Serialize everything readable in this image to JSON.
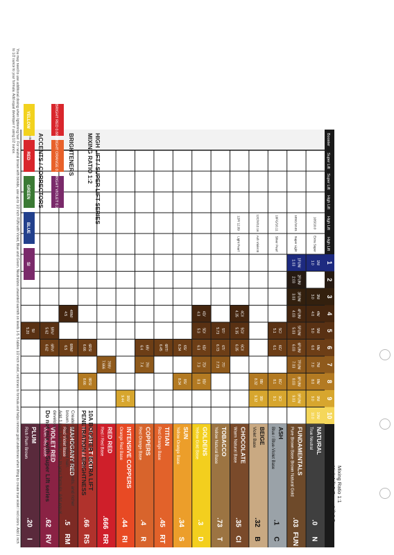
{
  "header": {
    "mixing_ratio_a": "Mixing Ratio 1:1",
    "mixing_ratio_b": "High Lift & Super Lift 1:2"
  },
  "levels": [
    "10",
    "9",
    "8",
    "7",
    "6",
    "5",
    "4",
    "3",
    "2",
    "1"
  ],
  "level_colors": [
    "#f5d75a",
    "#d7a62e",
    "#b37a22",
    "#8f5a1c",
    "#6d3e16",
    "#593113",
    "#45260f",
    "#33200e",
    "#261a12",
    "#1d2a80"
  ],
  "series": [
    {
      "code": "N",
      "tone": ".0",
      "name": "NATURAL",
      "base": "True Neutral",
      "color": "#3f3f3f",
      "text": "#ffffff",
      "cells": {
        "10": "10N/ 10.0",
        "9": "9N/ 9.0",
        "8": "8N/ 8.0",
        "7": "7N/ 7.0",
        "6": "6N/ 6.0",
        "5": "5N/ 5.0",
        "4": "4N/ 4.0",
        "3": "3N/ 3.0",
        "1": "1N/ 1.0"
      }
    },
    {
      "code": "FUN",
      "tone": ".03",
      "name": "FUNDAMENTALS",
      "base": "Pure Brown Base Brown Natural Gold",
      "color": "#6e4a2a",
      "text": "#ffffff",
      "cells": {
        "9": "9FUN/ 9.03",
        "8": "8FUN/ 8.03",
        "7": "7FUN/ 7.03",
        "6": "6FUN/ 6.03",
        "5": "5FUN/ 5.03",
        "4": "4FUN/ 4.03",
        "3": "3FUN/ 3.03",
        "2": "2FUN/ 2.03",
        "1": "1FUN/ 1.03"
      }
    },
    {
      "code": "C",
      "tone": ".1",
      "name": "ASH",
      "base": "Blue / Blue-Violet Base",
      "color": "#9aa2a8",
      "text": "#111111",
      "cells": {
        "9": "9C/ 9.1",
        "8": "8C/ 8.1",
        "6": "6C/ 6.1",
        "5": "5C/ 5.1"
      }
    },
    {
      "code": "B",
      "tone": ".32",
      "name": "BEIGE",
      "base": "Violet Base",
      "color": "#c9a982",
      "text": "#111111",
      "cells": {
        "9": "9B/ 9.32",
        "8": "8B/ 8.32"
      }
    },
    {
      "code": "CI",
      "tone": ".35",
      "name": "CHOCOLATE",
      "base": "Warm Natural Base",
      "color": "#7a4a2a",
      "text": "#ffffff",
      "cells": {
        "6": "6CI/ 6.35",
        "5": "5CI/ 5.35",
        "4": "4CI/ 4.35"
      }
    },
    {
      "code": "T",
      "tone": ".73",
      "name": "TOBACCO",
      "base": "Yellow Natural Base",
      "color": "#9c7442",
      "text": "#ffffff",
      "cells": {
        "7": "7T/ 7.73",
        "6": "6T/ 6.73",
        "5": "5T/ 5.73"
      }
    },
    {
      "code": "D",
      "tone": ".3",
      "name": "GOLDENS",
      "base": "Yellow Gold Base",
      "color": "#f3cf1e",
      "text": "#ffffff",
      "cells": {
        "8": "8D/ 8.3",
        "7": "7D/ 7.3",
        "6": "6D/ 6.3",
        "5": "5D/ 5.3",
        "4": "4D/ 4.3"
      }
    },
    {
      "code": "S",
      "tone": ".34",
      "name": "SUN",
      "base": "Yellow Orange Base",
      "color": "#ec9e2a",
      "text": "#ffffff",
      "cells": {
        "8": "8S/ 8.34",
        "6": "6S/ 6.34"
      }
    },
    {
      "code": "RT",
      "tone": ".45",
      "name": "TITIAN",
      "base": "Red Orange Base",
      "color": "#e2622a",
      "text": "#ffffff",
      "cells": {
        "6": "6RT/ 6.45"
      }
    },
    {
      "code": "R",
      "tone": ".4",
      "name": "COPPERS",
      "base": "Red Orange Base",
      "color": "#d8642c",
      "text": "#ffffff",
      "cells": {
        "7": "7R/ 7.4",
        "6": "6R/ 6.4"
      }
    },
    {
      "code": "RI",
      "tone": ".44",
      "name": "INTENSIVE COPPERS",
      "base": "Orange Red Base",
      "color": "#e84a24",
      "text": "#ffffff",
      "cells": {
        "9": "9RI/ 9.44"
      }
    },
    {
      "code": "RR",
      "tone": ".666",
      "name": "RED RED",
      "base": "Red / Red Base",
      "color": "#cf1f2a",
      "text": "#ffffff",
      "cells": {
        "7": "7RR/ 7.666"
      }
    },
    {
      "code": "RS",
      "tone": ".66",
      "name": "SCARLET RED",
      "base": "Red / Red-Violet Base",
      "color": "#b0322c",
      "text": "#ffffff",
      "cells": {
        "8": "8RS/ 8.66",
        "6": "6RS/ 6.66"
      }
    },
    {
      "code": "RM",
      "tone": ".5",
      "name": "MAHOGANY RED",
      "base": "Red Violet Base",
      "color": "#7d2a24",
      "text": "#ffffff",
      "cells": {
        "6": "6RM/ 6.5",
        "4": "4RM/ 4.5"
      }
    },
    {
      "code": "RV",
      "tone": ".62",
      "name": "VIOLET RED",
      "base": "Violet Red Base",
      "color": "#8a2244",
      "text": "#ffffff",
      "cells": {
        "6": "6RV/ 6.62",
        "5": "5RV/ 5.62"
      }
    },
    {
      "code": "I",
      "tone": ".20",
      "name": "PLUM",
      "base": "Rich Plum Brown",
      "color": "#5a2a3c",
      "text": "#ffffff",
      "cells": {
        "5": "5I/ 5.20"
      }
    }
  ],
  "high_lift": {
    "title_a": "HIGH LIFT / SUPER LIFT SERIES",
    "title_b": "MIXING RATIO 1:2",
    "rows": [
      {
        "label": "High Lift",
        "cells": {
          "N": "Extra Super Light Blonde",
          "FUN": "Super Light Ash Blonde",
          "C": "Silver Pearl",
          "B": "Ash Violet Blonde",
          "CI": "Light Pearl Blonde"
        }
      },
      {
        "label": "High Lift",
        "cells": {
          "N": "10S/10.0",
          "FUN": "10SC/10.01",
          "C": "10FG/10.11",
          "B": "12C/V/12.16",
          "CI": "12P/ 12.89"
        }
      },
      {
        "label": "High Lift",
        "cells": {}
      },
      {
        "label": "Super Lift",
        "cells": {}
      },
      {
        "label": "Super Lift",
        "cells": {}
      }
    ]
  },
  "brighteners": {
    "title": "BRIGHTENERS",
    "items": [
      {
        "label": "BRIGHT RED 0.66",
        "color": "#d9262c"
      },
      {
        "label": "BRIGHT ORANGE 0.44",
        "color": "#e8612a"
      },
      {
        "label": "BRIGHT VIOLET 0.22",
        "color": "#7a2a6a"
      }
    ]
  },
  "accents": {
    "title": "ACCENTS / CORRECTORS",
    "items": [
      {
        "label": "YELLOW",
        "color": "#f2d21e",
        "text": "#ffffff"
      },
      {
        "label": "RED",
        "color": "#d9262c",
        "text": "#ffffff"
      },
      {
        "label": "GREEN",
        "color": "#3b7a34",
        "text": "#ffffff"
      },
      {
        "label": "BLUE",
        "color": "#22408c",
        "text": "#ffffff"
      },
      {
        "label": "SI",
        "color": "#7a2a6a",
        "text": "#ffffff"
      }
    ]
  },
  "booster": {
    "label": "Booster",
    "cell": "10A Booster",
    "title": "10A BOOSTER - EXTRA LIFT PENETRATION / BRIGHTNESS",
    "line1": "Create clearer blondes, brighter reds, and richer brown color on resistant hair.",
    "line2": "Add 1 inch to equal parts to your formula. Add equal developer.",
    "warning": "Do not mix with Super Lift series"
  },
  "footnote": "You may need to use additional dosing when lightening hair. For neutral brown with blonde, use up to 1/2 inch FUN with Violet, Blue and Green. Neutralizes unwanted warmth on levels 1-5. 5 tables 1/2 inch violet, red tones to formula and helps remove gold undertones when lifting to create true violet / red colors. Add 1 inch to 1/2 ounce to your formula. Add equal developer if using 1/2 ounce."
}
